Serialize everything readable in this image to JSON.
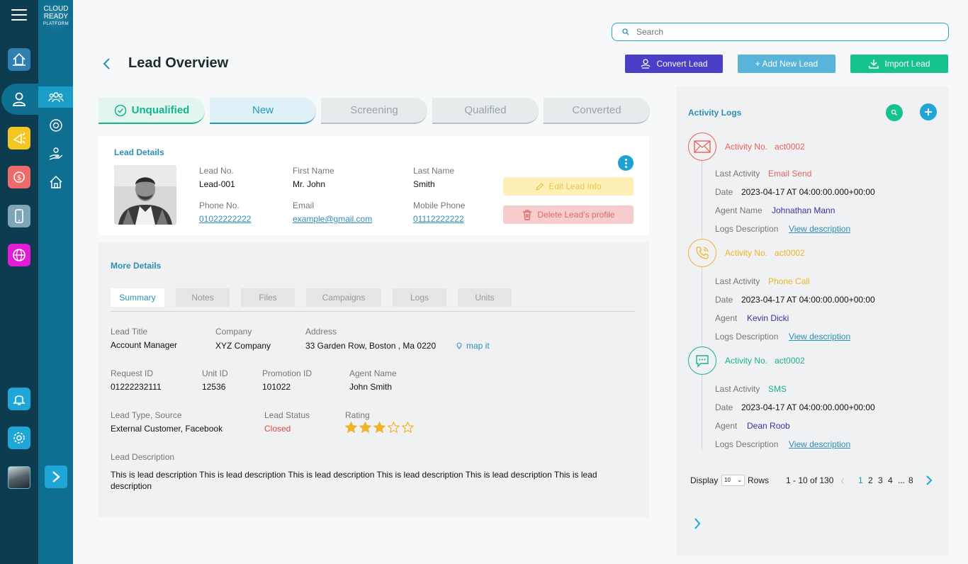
{
  "app": {
    "logo_text": "CLOUD READY",
    "logo_sub": "PLATFORM"
  },
  "search": {
    "placeholder": "Search"
  },
  "header": {
    "title": "Lead Overview",
    "convert_label": "Convert Lead",
    "add_label": "+ Add New Lead",
    "import_label": "Import Lead"
  },
  "stages": [
    "Unqualified",
    "New",
    "Screening",
    "Qualified",
    "Converted"
  ],
  "lead_details": {
    "title": "Lead Details",
    "lead_no_label": "Lead No.",
    "lead_no": "Lead-001",
    "first_name_label": "First Name",
    "first_name": "Mr. John",
    "last_name_label": "Last Name",
    "last_name": "Smith",
    "phone_label": "Phone No.",
    "phone": "01022222222",
    "email_label": "Email",
    "email": "example@gmail.com",
    "mobile_label": "Mobile Phone",
    "mobile": "01112222222",
    "edit_label": "Edit Lead Info",
    "delete_label": "Delete Lead’s profile"
  },
  "more_details": {
    "title": "More Details",
    "tabs": [
      "Summary",
      "Notes",
      "Files",
      "Campaigns",
      "Logs",
      "Units"
    ],
    "lead_title_label": "Lead Title",
    "lead_title": "Account Manager",
    "company_label": "Company",
    "company": "XYZ Company",
    "address_label": "Address",
    "address": "33 Garden Row, Boston , Ma 0220",
    "map_label": "map it",
    "request_id_label": "Request ID",
    "request_id": "01222232111",
    "unit_id_label": "Unit ID",
    "unit_id": "12536",
    "promotion_id_label": "Promotion ID",
    "promotion_id": "101022",
    "agent_name_label": "Agent Name",
    "agent_name": "John Smith",
    "lead_type_label": "Lead Type, Source",
    "lead_type": "External Customer, Facebook",
    "lead_status_label": "Lead Status",
    "lead_status": "Closed",
    "rating_label": "Rating",
    "rating": 3,
    "rating_max": 5,
    "desc_label": "Lead Description",
    "description": "This is lead description This is lead description This is lead description This is lead description This is lead description This is lead description"
  },
  "activity": {
    "title": "Activity Logs",
    "items": [
      {
        "no_label": "Activity No.",
        "no": "act0002",
        "last_label": "Last Activity",
        "last": "Email Send",
        "date_label": "Date",
        "date": "2023-04-17 AT 04:00:00.000+00:00",
        "agent_label": "Agent Name",
        "agent": "Johnathan Mann",
        "logs_label": "Logs Description",
        "view": "View description",
        "color": "#e8605c",
        "icon": "mail-icon"
      },
      {
        "no_label": "Activity No.",
        "no": "act0002",
        "last_label": "Last Activity",
        "last": "Phone Call",
        "date_label": "Date",
        "date": "2023-04-17 AT 04:00:00.000+00:00",
        "agent_label": "Agent",
        "agent": "Kevin Dicki",
        "logs_label": "Logs Description",
        "view": "View description",
        "color": "#f0b429",
        "icon": "phone-icon"
      },
      {
        "no_label": "Activity No.",
        "no": "act0002",
        "last_label": "Last Activity",
        "last": "SMS",
        "date_label": "Date",
        "date": "2023-04-17 AT 04:00:00.000+00:00",
        "agent_label": "Agent",
        "agent": "Dean Roob",
        "logs_label": "Logs Description",
        "view": "View description",
        "color": "#16b48a",
        "icon": "chat-icon"
      }
    ],
    "pager": {
      "display_label": "Display",
      "rows_value": "10",
      "rows_label": "Rows",
      "range": "1 - 10 of 130",
      "pages": [
        "1",
        "2",
        "3",
        "4",
        "...",
        "8"
      ]
    }
  },
  "colors": {
    "rail_dark": "#0d3b4f",
    "rail_light": "#0f6f90",
    "accent": "#2b8fb6",
    "convert": "#4a3fc7",
    "add": "#5ab3d9",
    "import": "#16c28e",
    "closed": "#e04848"
  }
}
